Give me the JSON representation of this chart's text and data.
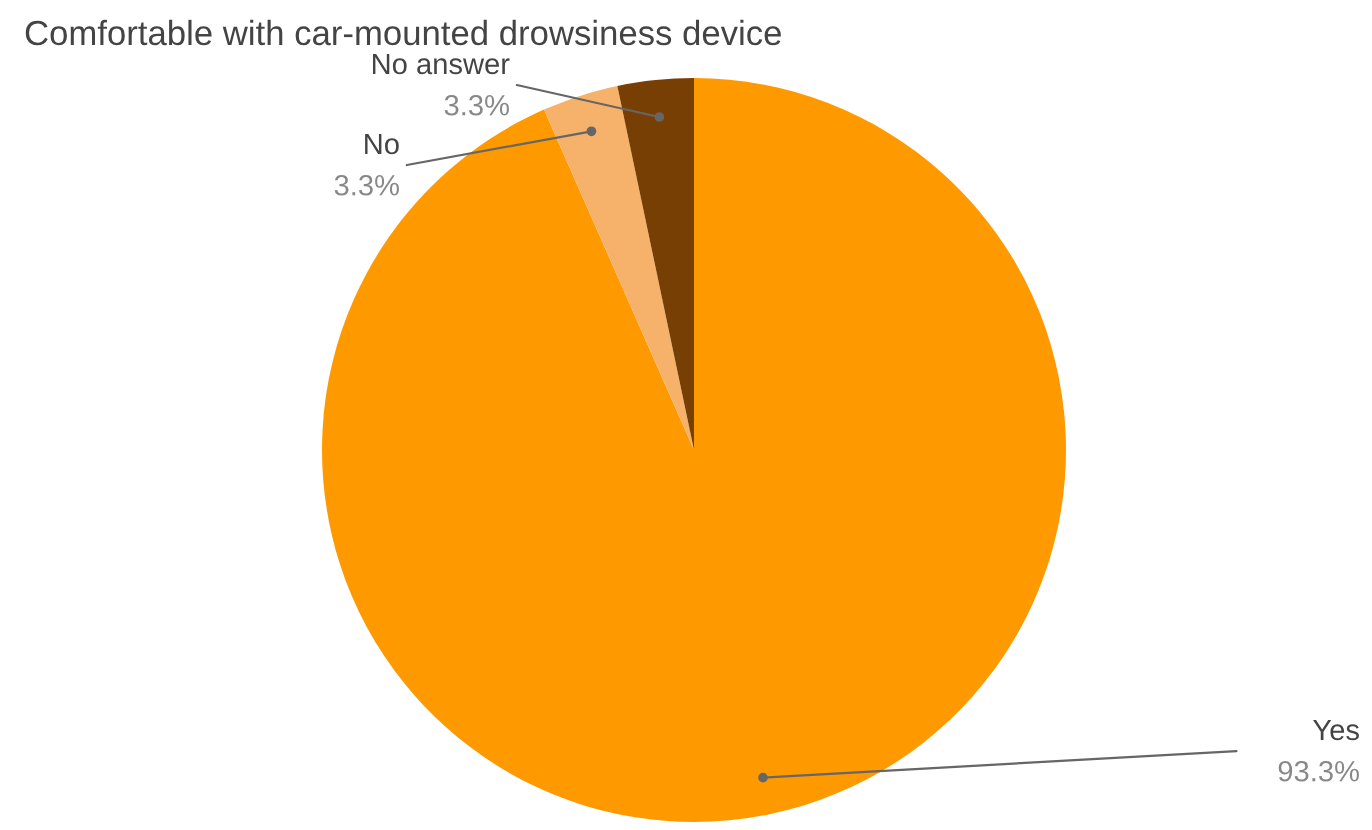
{
  "chart_data": {
    "type": "pie",
    "title": "Comfortable with car-mounted drowsiness device",
    "categories": [
      "Yes",
      "No",
      "No answer"
    ],
    "values": [
      93.3,
      3.3,
      3.3
    ],
    "value_labels": [
      "93.3%",
      "3.3%",
      "3.3%"
    ],
    "colors": [
      "#ff9900",
      "#f6b26b",
      "#783f04"
    ],
    "legend": false
  }
}
